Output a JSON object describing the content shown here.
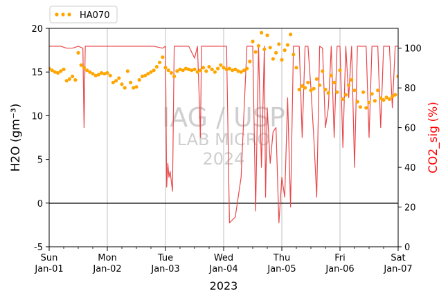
{
  "chart_data": {
    "type": "line",
    "legend": {
      "placement": "top-left",
      "label": "HA070"
    },
    "watermark": {
      "line1": "IAG / USP",
      "line2": "LAB MICRO",
      "line3": "2024"
    },
    "xlabel": "2023",
    "ylabel_left": "H2O (gm⁻³)",
    "ylabel_right": "CO2_sig (%)",
    "ylim_left": [
      -5,
      20
    ],
    "ylim_right": [
      0,
      110
    ],
    "xlim_days": [
      0,
      6
    ],
    "x_ticks": [
      {
        "day": "Sun",
        "date": "Jan-01"
      },
      {
        "day": "Mon",
        "date": "Jan-02"
      },
      {
        "day": "Tue",
        "date": "Jan-03"
      },
      {
        "day": "Wed",
        "date": "Jan-04"
      },
      {
        "day": "Thu",
        "date": "Jan-05"
      },
      {
        "day": "Fri",
        "date": "Jan-06"
      },
      {
        "day": "Sat",
        "date": "Jan-07"
      }
    ],
    "y_ticks_left": [
      "-5",
      "0",
      "5",
      "10",
      "15",
      "20"
    ],
    "y_ticks_right": [
      "0",
      "20",
      "40",
      "60",
      "80",
      "100"
    ],
    "zero_line": 0,
    "colors": {
      "h2o": "#ffa500",
      "co2": "#e8474a",
      "ylabel_right": "#ff0000"
    },
    "series": [
      {
        "name": "HA070",
        "axis": "left",
        "style": "dots",
        "x": [
          0.0,
          0.05,
          0.1,
          0.15,
          0.2,
          0.25,
          0.3,
          0.35,
          0.4,
          0.45,
          0.5,
          0.55,
          0.6,
          0.65,
          0.7,
          0.75,
          0.8,
          0.85,
          0.9,
          0.95,
          1.0,
          1.05,
          1.1,
          1.15,
          1.2,
          1.25,
          1.3,
          1.35,
          1.4,
          1.45,
          1.5,
          1.55,
          1.6,
          1.65,
          1.7,
          1.75,
          1.8,
          1.85,
          1.9,
          1.95,
          2.0,
          2.05,
          2.1,
          2.15,
          2.2,
          2.25,
          2.3,
          2.35,
          2.4,
          2.45,
          2.5,
          2.55,
          2.6,
          2.65,
          2.7,
          2.75,
          2.8,
          2.85,
          2.9,
          2.95,
          3.0,
          3.05,
          3.1,
          3.15,
          3.2,
          3.25,
          3.3,
          3.35,
          3.4,
          3.45,
          3.5,
          3.55,
          3.6,
          3.65,
          3.7,
          3.75,
          3.8,
          3.85,
          3.9,
          3.95,
          4.0,
          4.05,
          4.1,
          4.15,
          4.2,
          4.25,
          4.3,
          4.35,
          4.4,
          4.45,
          4.5,
          4.55,
          4.6,
          4.65,
          4.7,
          4.75,
          4.8,
          4.85,
          4.9,
          4.95,
          5.0,
          5.05,
          5.1,
          5.15,
          5.2,
          5.25,
          5.3,
          5.35,
          5.4,
          5.45,
          5.5,
          5.55,
          5.6,
          5.65,
          5.7,
          5.75,
          5.8,
          5.85,
          5.9,
          5.95,
          6.0
        ],
        "values": [
          15.4,
          15.2,
          15.0,
          14.9,
          15.1,
          15.3,
          14.0,
          14.2,
          14.5,
          14.1,
          17.2,
          15.8,
          15.5,
          15.2,
          15.0,
          14.8,
          14.6,
          14.7,
          14.9,
          14.8,
          14.9,
          14.6,
          13.8,
          14.0,
          14.3,
          13.6,
          13.2,
          15.1,
          13.8,
          13.2,
          13.3,
          14.1,
          14.5,
          14.6,
          14.8,
          15.0,
          15.2,
          15.6,
          16.1,
          16.7,
          15.5,
          15.2,
          14.9,
          14.5,
          15.1,
          15.3,
          15.2,
          15.4,
          15.3,
          15.2,
          15.3,
          15.0,
          15.2,
          15.5,
          15.1,
          15.6,
          15.3,
          15.0,
          15.4,
          15.8,
          15.5,
          15.3,
          15.4,
          15.2,
          15.3,
          15.1,
          15.0,
          15.2,
          15.4,
          16.2,
          18.5,
          17.3,
          18.0,
          19.5,
          17.6,
          19.2,
          17.8,
          16.5,
          17.2,
          18.2,
          16.4,
          17.5,
          18.1,
          19.3,
          17.0,
          15.5,
          13.0,
          13.4,
          13.2,
          13.8,
          12.9,
          13.1,
          14.2,
          13.5,
          15.1,
          13.0,
          12.6,
          14.6,
          13.8,
          12.7,
          15.2,
          11.9,
          12.4,
          13.5,
          14.1,
          12.9,
          11.6,
          11.0,
          12.7,
          10.9,
          11.5,
          12.5,
          11.7,
          12.9,
          12.0,
          11.8,
          12.1,
          11.9,
          12.2,
          12.4,
          14.5
        ]
      },
      {
        "name": "CO2_sig",
        "axis": "right",
        "style": "line",
        "x": [
          0.0,
          0.1,
          0.2,
          0.3,
          0.4,
          0.5,
          0.58,
          0.6,
          0.62,
          0.7,
          0.8,
          0.9,
          1.0,
          1.2,
          1.4,
          1.6,
          1.8,
          1.95,
          2.0,
          2.02,
          2.04,
          2.06,
          2.08,
          2.12,
          2.15,
          2.2,
          2.3,
          2.4,
          2.5,
          2.55,
          2.58,
          2.6,
          2.62,
          2.7,
          2.8,
          2.9,
          2.95,
          2.97,
          3.0,
          3.05,
          3.1,
          3.2,
          3.3,
          3.4,
          3.45,
          3.5,
          3.55,
          3.6,
          3.65,
          3.7,
          3.72,
          3.75,
          3.8,
          3.85,
          3.9,
          3.95,
          4.0,
          4.05,
          4.1,
          4.15,
          4.2,
          4.25,
          4.3,
          4.35,
          4.4,
          4.45,
          4.5,
          4.55,
          4.6,
          4.65,
          4.7,
          4.75,
          4.8,
          4.85,
          4.9,
          4.95,
          5.0,
          5.05,
          5.1,
          5.15,
          5.2,
          5.25,
          5.3,
          5.35,
          5.4,
          5.45,
          5.5,
          5.55,
          5.6,
          5.65,
          5.7,
          5.75,
          5.8,
          5.85,
          5.9,
          5.95,
          6.0
        ],
        "values": [
          101,
          101,
          101,
          100,
          100,
          101,
          100,
          60,
          101,
          101,
          101,
          101,
          101,
          101,
          101,
          101,
          101,
          100,
          101,
          30,
          42,
          35,
          38,
          28,
          101,
          101,
          101,
          101,
          95,
          101,
          75,
          55,
          101,
          101,
          101,
          101,
          101,
          101,
          101,
          101,
          12,
          15,
          35,
          101,
          101,
          101,
          18,
          101,
          40,
          101,
          25,
          70,
          42,
          58,
          60,
          12,
          35,
          25,
          75,
          20,
          101,
          101,
          101,
          55,
          101,
          101,
          80,
          55,
          25,
          101,
          100,
          60,
          70,
          101,
          55,
          101,
          101,
          50,
          101,
          75,
          101,
          40,
          101,
          101,
          101,
          101,
          55,
          101,
          101,
          101,
          60,
          101,
          101,
          101,
          70,
          101,
          101
        ]
      }
    ]
  }
}
